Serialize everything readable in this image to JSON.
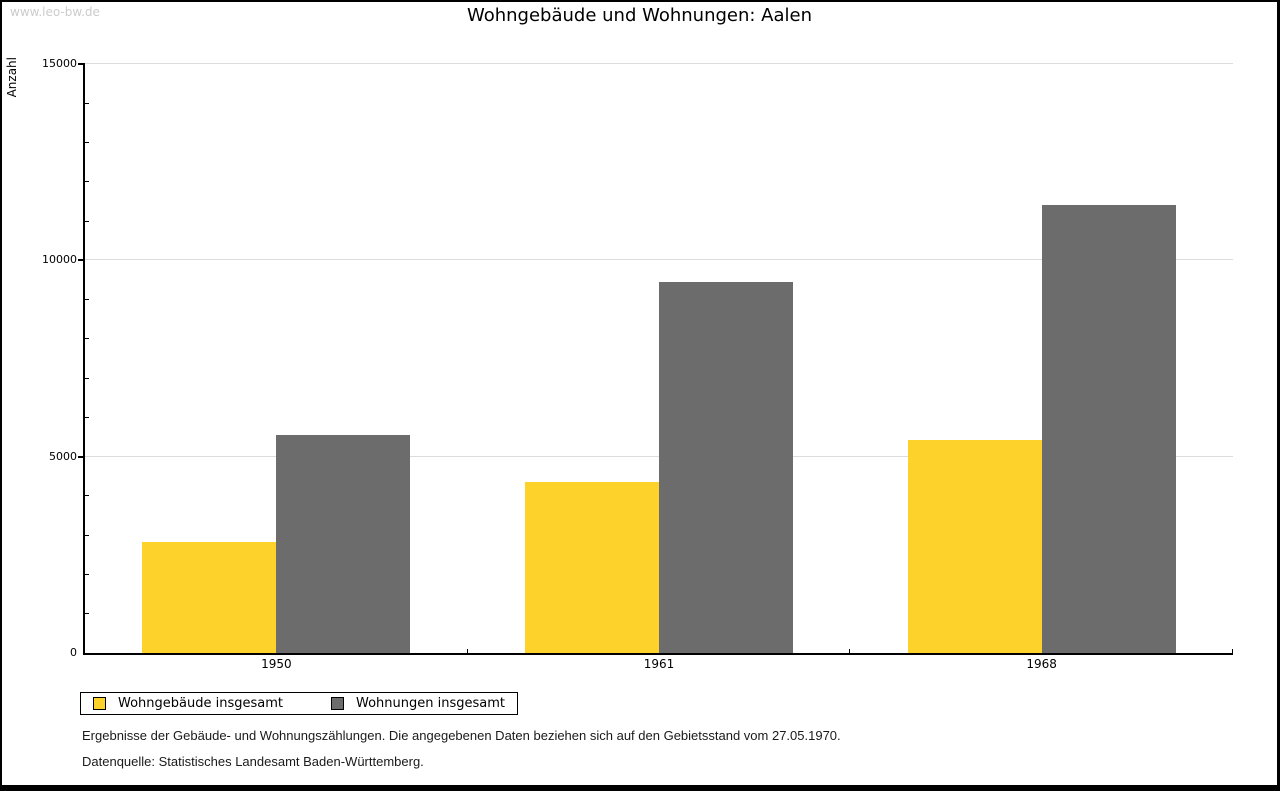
{
  "watermark": "www.leo-bw.de",
  "title": "Wohngebäude und Wohnungen: Aalen",
  "y_axis_title": "Anzahl",
  "footnotes": {
    "line1": "Ergebnisse der Gebäude- und Wohnungszählungen. Die angegebenen Daten beziehen sich auf den Gebietsstand vom 27.05.1970.",
    "line2": "Datenquelle: Statistisches Landesamt Baden-Württemberg."
  },
  "colors": {
    "series_wohngebaeude": "#fdd32b",
    "series_wohnungen": "#6c6c6c",
    "gridline": "#dcdcdc",
    "watermark": "#cccccc",
    "axis": "#000000"
  },
  "chart_data": {
    "type": "bar",
    "categories": [
      "1950",
      "1961",
      "1968"
    ],
    "series": [
      {
        "name": "Wohngebäude insgesamt",
        "color": "#fdd32b",
        "values": [
          2830,
          4360,
          5420
        ]
      },
      {
        "name": "Wohnungen insgesamt",
        "color": "#6c6c6c",
        "values": [
          5550,
          9450,
          11410
        ]
      }
    ],
    "title": "Wohngebäude und Wohnungen: Aalen",
    "xlabel": "",
    "ylabel": "Anzahl",
    "ylim": [
      0,
      15000
    ],
    "ytick_step": 5000,
    "yminor_step": 1000,
    "ytick_labels": [
      "0",
      "5000",
      "10000",
      "15000"
    ],
    "grid": true,
    "legend_position": "bottom-left"
  }
}
